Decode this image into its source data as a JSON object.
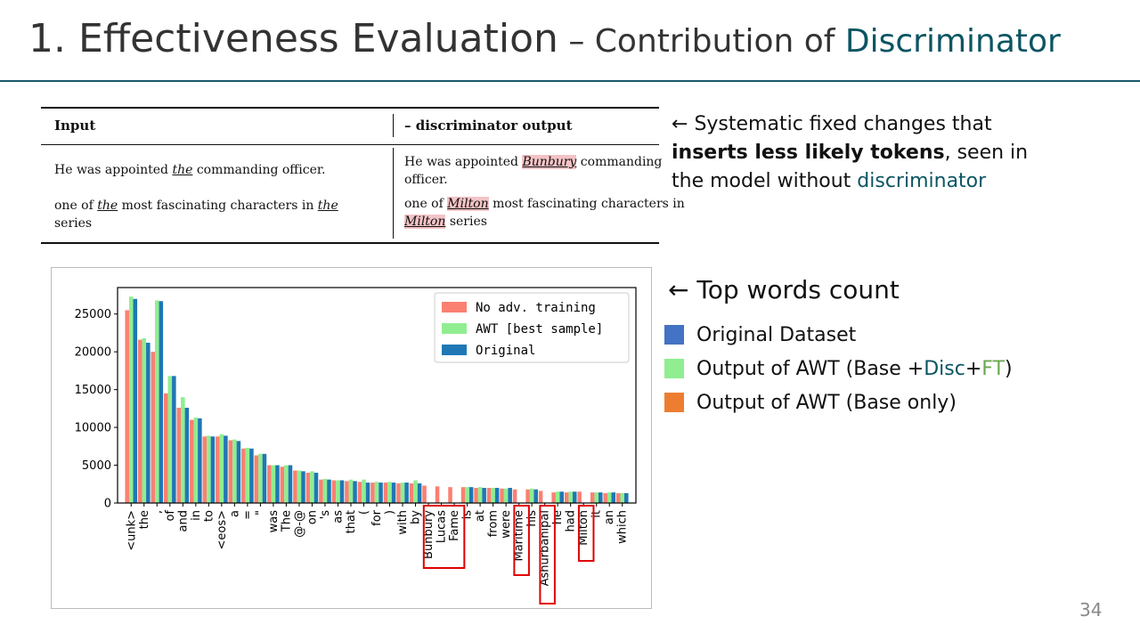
{
  "slide": {
    "title_main": "1. Effectiveness Evaluation",
    "title_dash": " – ",
    "title_sub": "Contribution of ",
    "title_accent": "Discriminator",
    "page_number": "34"
  },
  "table": {
    "col1_header": "Input",
    "col2_header": "– discriminator output",
    "rows": [
      {
        "input_a": "He was appointed ",
        "input_em": "the",
        "input_b": " commanding officer.",
        "output_a": "He was appointed ",
        "output_em": "Bunbury",
        "output_b": " commanding officer."
      },
      {
        "input_a": "one of ",
        "input_em": "the",
        "input_b": " most fascinating characters in ",
        "input_em2": "the",
        "input_c": " series",
        "output_a": "one of ",
        "output_em": "Milton",
        "output_b": " most fascinating characters in ",
        "output_em2": "Milton",
        "output_c": " series"
      }
    ]
  },
  "note1": {
    "arrow": "← ",
    "text_a": "Systematic fixed changes that ",
    "bold": "inserts less likely tokens",
    "text_b": ", seen in the model without ",
    "accent": "discriminator"
  },
  "note2": {
    "text": "← Top words count"
  },
  "side_legend": [
    {
      "text": "Original Dataset",
      "color": "#4472c4"
    },
    {
      "parts": [
        "Output of AWT (Base + ",
        "Disc",
        " + ",
        "FT",
        ")"
      ],
      "color": "#90ee90"
    },
    {
      "text": "Output of AWT (Base only)",
      "color": "#ed7d31"
    }
  ],
  "chart_data": {
    "type": "bar",
    "categories": [
      "<unk>",
      "the",
      ",",
      "of",
      "and",
      "in",
      "to",
      "<eos>",
      "a",
      "=",
      "\"",
      "was",
      "The",
      "@-@",
      "on",
      "'s",
      "as",
      "that",
      "(",
      "for",
      ")",
      "with",
      "by",
      "Bunbury",
      "Lucas",
      "Fame",
      "is",
      "at",
      "from",
      "were",
      "Maritime",
      "his",
      "Ashurbanipal",
      "he",
      "had",
      "Milton",
      "it",
      "an",
      "which"
    ],
    "series": [
      {
        "name": "No adv. training",
        "color": "#fa8072",
        "values": [
          25500,
          21600,
          20000,
          14500,
          12600,
          11000,
          8800,
          8800,
          8300,
          7200,
          6300,
          5000,
          4800,
          4300,
          4000,
          3100,
          3000,
          2900,
          2800,
          2700,
          2700,
          2600,
          2600,
          2300,
          2200,
          2100,
          2100,
          2000,
          2000,
          1900,
          1800,
          1800,
          1600,
          1400,
          1400,
          1500,
          1400,
          1300,
          1300
        ]
      },
      {
        "name": "AWT [best sample]",
        "color": "#90ee90",
        "values": [
          27300,
          21800,
          26800,
          16800,
          14000,
          11300,
          8900,
          9100,
          8400,
          7300,
          6500,
          5000,
          5000,
          4300,
          4200,
          3200,
          3000,
          3100,
          3100,
          2800,
          2800,
          2700,
          3000,
          0,
          0,
          0,
          2100,
          2100,
          2000,
          1900,
          0,
          1900,
          0,
          1500,
          1500,
          0,
          1400,
          1400,
          1300
        ]
      },
      {
        "name": "Original",
        "color": "#1f77b4",
        "values": [
          27000,
          21200,
          26700,
          16800,
          12600,
          11200,
          8800,
          8900,
          8200,
          7200,
          6500,
          5000,
          5000,
          4200,
          4000,
          3100,
          3000,
          2900,
          2700,
          2700,
          2700,
          2700,
          2600,
          0,
          0,
          0,
          2100,
          2000,
          2000,
          2000,
          0,
          1800,
          0,
          1500,
          1500,
          0,
          1400,
          1400,
          1300
        ]
      }
    ],
    "yticks": [
      "0",
      "5000",
      "10000",
      "15000",
      "20000",
      "25000"
    ],
    "ylim": [
      0,
      28500
    ],
    "legend": "top-right",
    "grid": false,
    "highlighted_boxes": [
      [
        "Bunbury",
        "Lucas",
        "Fame"
      ],
      [
        "Maritime"
      ],
      [
        "Ashurbanipal"
      ],
      [
        "Milton"
      ]
    ]
  }
}
